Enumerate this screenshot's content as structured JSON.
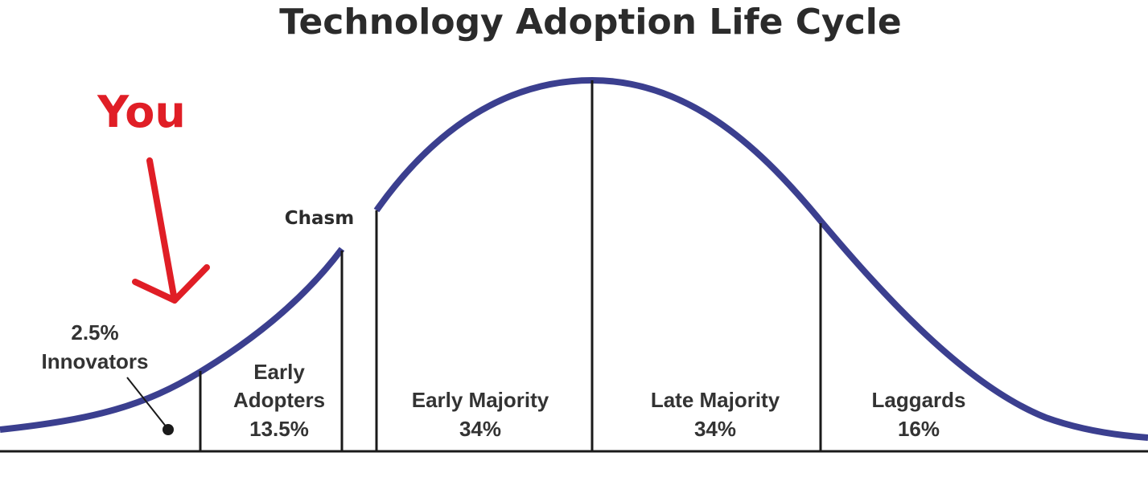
{
  "title": "Technology Adoption Life Cycle",
  "annotation": {
    "label": "You",
    "color": "#e01e26"
  },
  "chasm_label": "Chasm",
  "segments": [
    {
      "line1": "2.5%",
      "line2": "Innovators"
    },
    {
      "line1": "Early",
      "line2": "Adopters",
      "line3": "13.5%"
    },
    {
      "line1": "Early Majority",
      "line2": "34%"
    },
    {
      "line1": "Late Majority",
      "line2": "34%"
    },
    {
      "line1": "Laggards",
      "line2": "16%"
    }
  ],
  "colors": {
    "curve": "#3b3f8f",
    "dividers": "#1a1a1a",
    "text": "#333333"
  }
}
